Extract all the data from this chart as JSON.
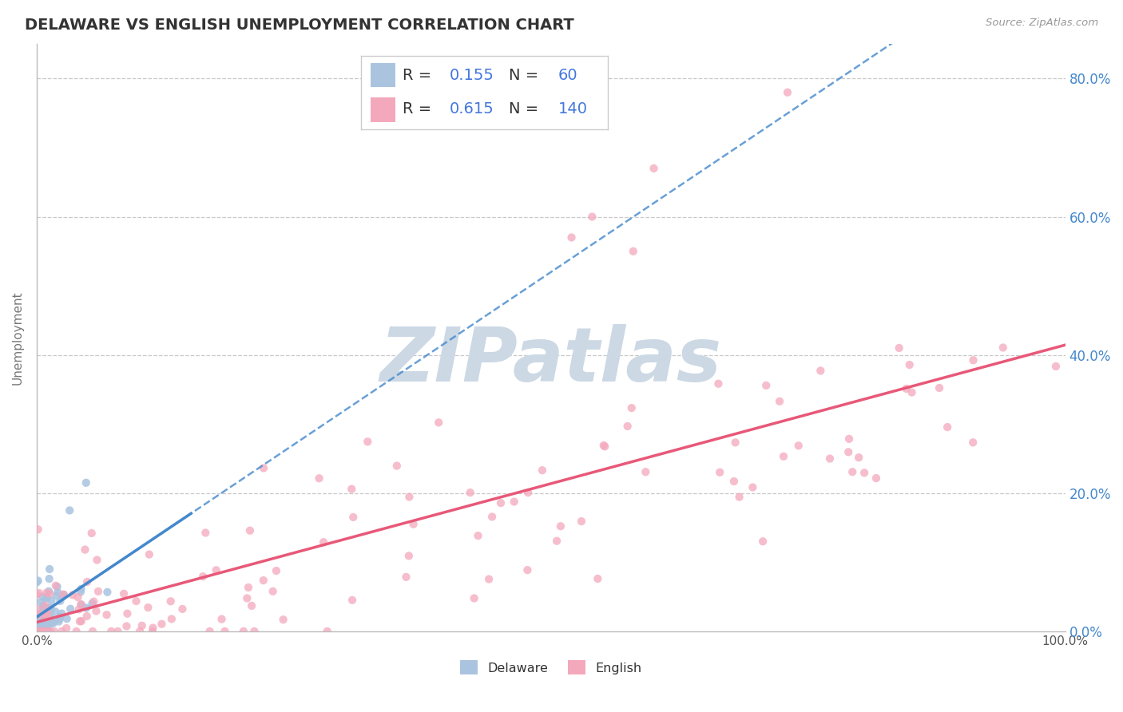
{
  "title": "DELAWARE VS ENGLISH UNEMPLOYMENT CORRELATION CHART",
  "source": "Source: ZipAtlas.com",
  "ylabel": "Unemployment",
  "xlim": [
    0.0,
    1.0
  ],
  "ylim": [
    0.0,
    0.85
  ],
  "yticks": [
    0.0,
    0.2,
    0.4,
    0.6,
    0.8
  ],
  "ytick_labels": [
    "0.0%",
    "20.0%",
    "40.0%",
    "60.0%",
    "80.0%"
  ],
  "xticks": [
    0.0,
    1.0
  ],
  "xtick_labels": [
    "0.0%",
    "100.0%"
  ],
  "background_color": "#ffffff",
  "grid_color": "#c8c8c8",
  "watermark_text": "ZIPatlas",
  "watermark_color": "#ccd8e4",
  "delaware_color": "#aac4e0",
  "english_color": "#f4a8bc",
  "delaware_line_color": "#4488cc",
  "english_line_color": "#e85878",
  "R_delaware": "0.155",
  "N_delaware": "60",
  "R_english": "0.615",
  "N_english": "140",
  "title_fontsize": 14,
  "axis_label_fontsize": 11,
  "tick_fontsize": 11,
  "legend_fontsize": 14
}
